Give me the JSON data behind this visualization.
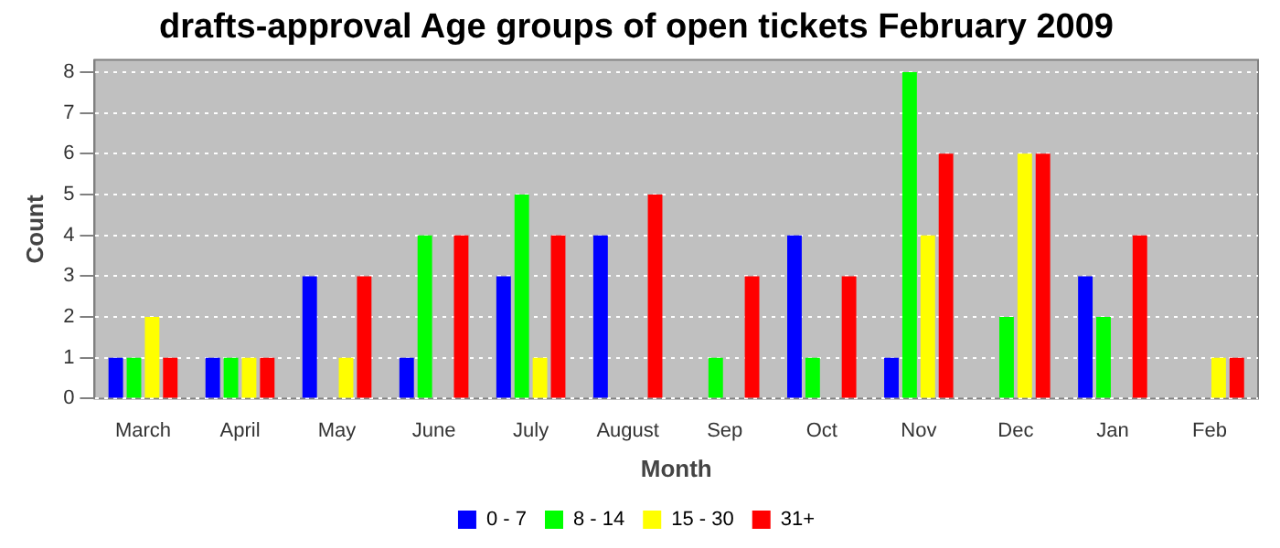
{
  "chart_data": {
    "type": "bar",
    "title": "drafts-approval Age groups of open tickets February 2009",
    "xlabel": "Month",
    "ylabel": "Count",
    "categories": [
      "March",
      "April",
      "May",
      "June",
      "July",
      "August",
      "Sep",
      "Oct",
      "Nov",
      "Dec",
      "Jan",
      "Feb"
    ],
    "series": [
      {
        "name": "0 - 7",
        "color": "#0000ff",
        "values": [
          1,
          1,
          3,
          1,
          3,
          4,
          0,
          4,
          1,
          0,
          3,
          0
        ]
      },
      {
        "name": "8 - 14",
        "color": "#00ff00",
        "values": [
          1,
          1,
          0,
          4,
          5,
          0,
          1,
          1,
          8,
          2,
          2,
          0
        ]
      },
      {
        "name": "15 - 30",
        "color": "#ffff00",
        "values": [
          2,
          1,
          1,
          0,
          1,
          0,
          0,
          0,
          4,
          6,
          0,
          1
        ]
      },
      {
        "name": "31+",
        "color": "#ff0000",
        "values": [
          1,
          1,
          3,
          4,
          4,
          5,
          3,
          3,
          6,
          6,
          4,
          1
        ]
      }
    ],
    "ylim": [
      0,
      8.3
    ],
    "yticks": [
      0,
      1,
      2,
      3,
      4,
      5,
      6,
      7,
      8
    ],
    "grid": "y",
    "legend": "bottom"
  }
}
